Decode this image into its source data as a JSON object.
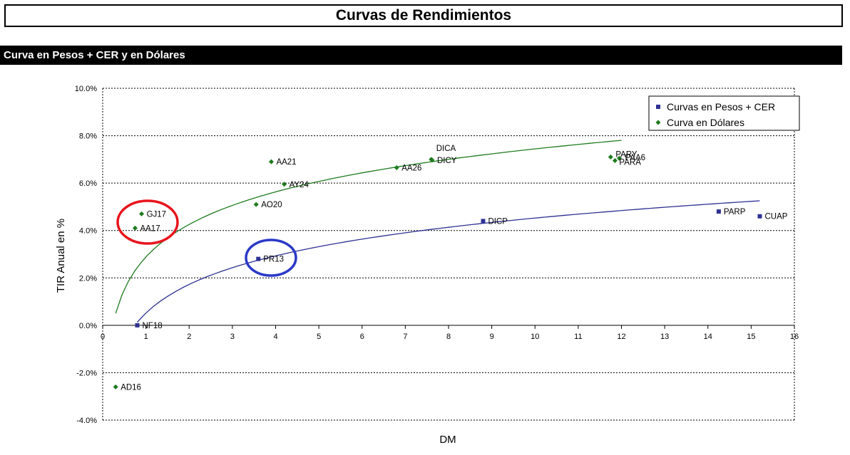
{
  "page": {
    "title": "Curvas de Rendimientos",
    "section_title": "Curva en Pesos + CER y en Dólares"
  },
  "chart_data": {
    "type": "scatter",
    "xlabel": "DM",
    "ylabel": "TIR Anual en %",
    "xlim": [
      0,
      16
    ],
    "ylim": [
      -4.0,
      10.0
    ],
    "x_ticks": [
      0,
      1,
      2,
      3,
      4,
      5,
      6,
      7,
      8,
      9,
      10,
      11,
      12,
      13,
      14,
      15,
      16
    ],
    "y_ticks": [
      {
        "value": 10,
        "label": "10.0%"
      },
      {
        "value": 8,
        "label": "8.0%"
      },
      {
        "value": 6,
        "label": "6.0%"
      },
      {
        "value": 4,
        "label": "4.0%"
      },
      {
        "value": 2,
        "label": "2.0%"
      },
      {
        "value": 0,
        "label": "0.0%"
      },
      {
        "value": -2,
        "label": "-2.0%"
      },
      {
        "value": -4,
        "label": "-4.0%"
      }
    ],
    "grid": true,
    "legend_position": "top-right",
    "series": [
      {
        "name": "Curvas en Pesos + CER",
        "marker": "square",
        "color": "#2e3192",
        "points": [
          {
            "label": "NF18",
            "x": 0.8,
            "y": 0.0
          },
          {
            "label": "PR13",
            "x": 3.6,
            "y": 2.8
          },
          {
            "label": "DICP",
            "x": 8.8,
            "y": 4.4
          },
          {
            "label": "PARP",
            "x": 14.25,
            "y": 4.8
          },
          {
            "label": "CUAP",
            "x": 15.2,
            "y": 4.6
          }
        ]
      },
      {
        "name": "Curva en Dólares",
        "marker": "diamond",
        "color": "#1e7b1e",
        "points": [
          {
            "label": "AD16",
            "x": 0.3,
            "y": -2.6
          },
          {
            "label": "AA17",
            "x": 0.75,
            "y": 4.1
          },
          {
            "label": "GJ17",
            "x": 0.9,
            "y": 4.7
          },
          {
            "label": "AO20",
            "x": 3.55,
            "y": 5.1
          },
          {
            "label": "AA21",
            "x": 3.9,
            "y": 6.9
          },
          {
            "label": "AY24",
            "x": 4.2,
            "y": 5.95
          },
          {
            "label": "AA26",
            "x": 6.8,
            "y": 6.65
          },
          {
            "label": "DICA",
            "x": 7.6,
            "y": 7.0
          },
          {
            "label": "DICY",
            "x": 7.62,
            "y": 6.97
          },
          {
            "label": "PARY",
            "x": 11.75,
            "y": 7.1
          },
          {
            "label": "PAA6",
            "x": 11.95,
            "y": 7.05
          },
          {
            "label": "PARA",
            "x": 11.85,
            "y": 6.95
          }
        ]
      }
    ],
    "trendlines": [
      {
        "series": "Curvas en Pesos + CER",
        "type": "log",
        "x_range": [
          0.8,
          15.2
        ],
        "color": "#2e3192"
      },
      {
        "series": "Curva en Dólares",
        "type": "log",
        "x_range": [
          0.3,
          12.0
        ],
        "color": "#1e7b1e"
      }
    ]
  },
  "annotations": {
    "red_circle_color": "#e8141c",
    "blue_circle_color": "#2b39c8"
  }
}
